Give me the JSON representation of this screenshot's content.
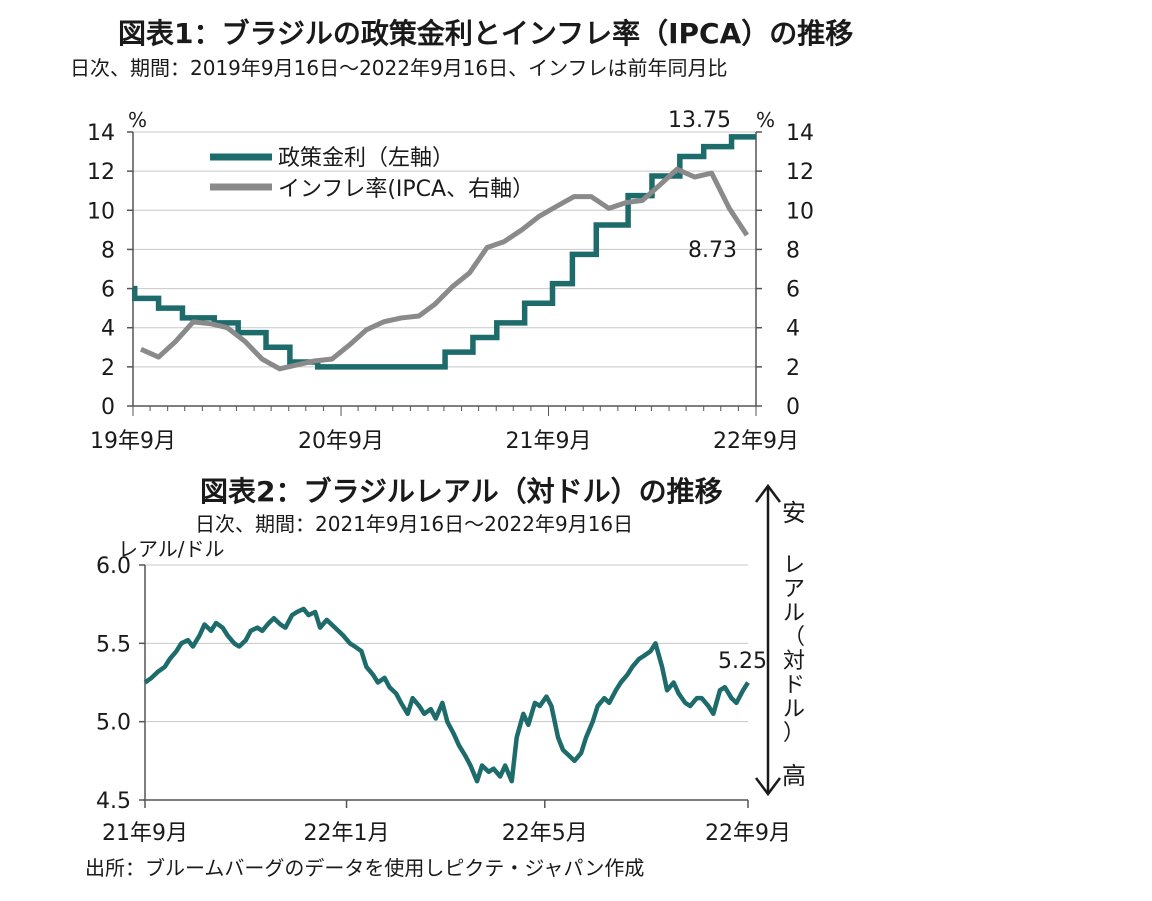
{
  "chart1": {
    "title": "図表1：ブラジルの政策金利とインフレ率（IPCA）の推移",
    "subtitle": "日次、期間：2019年9月16日～2022年9月16日、インフレは前年同月比",
    "left_unit": "%",
    "right_unit": "%",
    "legend_policy": "政策金利（左軸）",
    "legend_ipca": "インフレ率(IPCA、右軸）",
    "end_label_policy": "13.75",
    "end_label_ipca": "8.73",
    "y_ticks": [
      "0",
      "2",
      "4",
      "6",
      "8",
      "10",
      "12",
      "14"
    ],
    "x_ticks": [
      "19年9月",
      "20年9月",
      "21年9月",
      "22年9月"
    ]
  },
  "chart2": {
    "title": "図表2：ブラジルレアル（対ドル）の推移",
    "subtitle": "日次、期間：2021年9月16日～2022年9月16日",
    "unit": "レアル/ドル",
    "end_label": "5.25",
    "y_ticks": [
      "6.0",
      "5.5",
      "5.0",
      "4.5"
    ],
    "x_ticks": [
      "21年9月",
      "22年1月",
      "22年5月",
      "22年9月"
    ],
    "side_top": "安",
    "side_mid": [
      "レ",
      "ア",
      "ル",
      "（",
      "対",
      "ド",
      "ル",
      "）"
    ],
    "side_bottom": "高"
  },
  "source": "出所：ブルームバーグのデータを使用しピクテ・ジャパン作成",
  "colors": {
    "policy": "#1d6b6b",
    "ipca": "#8a8a8a",
    "brl": "#1d6b6b",
    "grid": "#c8c8c8",
    "axis": "#555555"
  },
  "chart_data": [
    {
      "type": "line",
      "title": "図表1：ブラジルの政策金利とインフレ率（IPCA）の推移",
      "x_range": [
        "2019-09-16",
        "2022-09-16"
      ],
      "ylim": [
        0,
        14
      ],
      "series": [
        {
          "name": "政策金利（左軸）",
          "step": true,
          "points": [
            [
              "2019-09-16",
              6.0
            ],
            [
              "2019-09-19",
              5.5
            ],
            [
              "2019-10-31",
              5.0
            ],
            [
              "2019-12-12",
              4.5
            ],
            [
              "2020-02-06",
              4.25
            ],
            [
              "2020-03-19",
              3.75
            ],
            [
              "2020-05-07",
              3.0
            ],
            [
              "2020-06-18",
              2.25
            ],
            [
              "2020-08-06",
              2.0
            ],
            [
              "2021-03-18",
              2.75
            ],
            [
              "2021-05-06",
              3.5
            ],
            [
              "2021-06-17",
              4.25
            ],
            [
              "2021-08-05",
              5.25
            ],
            [
              "2021-09-23",
              6.25
            ],
            [
              "2021-10-28",
              7.75
            ],
            [
              "2021-12-09",
              9.25
            ],
            [
              "2022-02-03",
              10.75
            ],
            [
              "2022-03-17",
              11.75
            ],
            [
              "2022-05-05",
              12.75
            ],
            [
              "2022-06-16",
              13.25
            ],
            [
              "2022-08-04",
              13.75
            ],
            [
              "2022-09-16",
              13.75
            ]
          ]
        },
        {
          "name": "インフレ率(IPCA、右軸）",
          "points": [
            [
              "2019-09-30",
              2.9
            ],
            [
              "2019-10-31",
              2.5
            ],
            [
              "2019-11-30",
              3.3
            ],
            [
              "2019-12-31",
              4.3
            ],
            [
              "2020-01-31",
              4.2
            ],
            [
              "2020-02-29",
              4.0
            ],
            [
              "2020-03-31",
              3.3
            ],
            [
              "2020-04-30",
              2.4
            ],
            [
              "2020-05-31",
              1.9
            ],
            [
              "2020-06-30",
              2.1
            ],
            [
              "2020-07-31",
              2.3
            ],
            [
              "2020-08-31",
              2.4
            ],
            [
              "2020-09-30",
              3.1
            ],
            [
              "2020-10-31",
              3.9
            ],
            [
              "2020-11-30",
              4.3
            ],
            [
              "2020-12-31",
              4.5
            ],
            [
              "2021-01-31",
              4.6
            ],
            [
              "2021-02-28",
              5.2
            ],
            [
              "2021-03-31",
              6.1
            ],
            [
              "2021-04-30",
              6.8
            ],
            [
              "2021-05-31",
              8.1
            ],
            [
              "2021-06-30",
              8.4
            ],
            [
              "2021-07-31",
              9.0
            ],
            [
              "2021-08-31",
              9.7
            ],
            [
              "2021-09-30",
              10.2
            ],
            [
              "2021-10-31",
              10.7
            ],
            [
              "2021-11-30",
              10.7
            ],
            [
              "2021-12-31",
              10.1
            ],
            [
              "2022-01-31",
              10.4
            ],
            [
              "2022-02-28",
              10.5
            ],
            [
              "2022-03-31",
              11.3
            ],
            [
              "2022-04-30",
              12.1
            ],
            [
              "2022-05-31",
              11.7
            ],
            [
              "2022-06-30",
              11.9
            ],
            [
              "2022-07-31",
              10.1
            ],
            [
              "2022-08-31",
              8.73
            ]
          ]
        }
      ],
      "annotations": [
        {
          "text": "13.75",
          "series": "政策金利（左軸）",
          "x": "2022-09-16"
        },
        {
          "text": "8.73",
          "series": "インフレ率(IPCA、右軸）",
          "x": "2022-08-31"
        }
      ]
    },
    {
      "type": "line",
      "title": "図表2：ブラジルレアル（対ドル）の推移",
      "x_range": [
        "2021-09-16",
        "2022-09-16"
      ],
      "ylim": [
        4.5,
        6.0
      ],
      "ylabel": "レアル/ドル",
      "series": [
        {
          "points": [
            [
              "2021-09-16",
              5.25
            ],
            [
              "2021-09-20",
              5.28
            ],
            [
              "2021-09-24",
              5.32
            ],
            [
              "2021-09-28",
              5.35
            ],
            [
              "2021-10-01",
              5.4
            ],
            [
              "2021-10-05",
              5.45
            ],
            [
              "2021-10-08",
              5.5
            ],
            [
              "2021-10-12",
              5.52
            ],
            [
              "2021-10-15",
              5.48
            ],
            [
              "2021-10-19",
              5.55
            ],
            [
              "2021-10-22",
              5.62
            ],
            [
              "2021-10-26",
              5.58
            ],
            [
              "2021-10-29",
              5.63
            ],
            [
              "2021-11-02",
              5.6
            ],
            [
              "2021-11-05",
              5.55
            ],
            [
              "2021-11-09",
              5.5
            ],
            [
              "2021-11-12",
              5.48
            ],
            [
              "2021-11-16",
              5.52
            ],
            [
              "2021-11-19",
              5.58
            ],
            [
              "2021-11-23",
              5.6
            ],
            [
              "2021-11-26",
              5.58
            ],
            [
              "2021-11-30",
              5.63
            ],
            [
              "2021-12-03",
              5.66
            ],
            [
              "2021-12-07",
              5.62
            ],
            [
              "2021-12-10",
              5.6
            ],
            [
              "2021-12-14",
              5.68
            ],
            [
              "2021-12-17",
              5.7
            ],
            [
              "2021-12-21",
              5.72
            ],
            [
              "2021-12-24",
              5.68
            ],
            [
              "2021-12-28",
              5.7
            ],
            [
              "2021-12-31",
              5.6
            ],
            [
              "2022-01-04",
              5.65
            ],
            [
              "2022-01-07",
              5.62
            ],
            [
              "2022-01-11",
              5.58
            ],
            [
              "2022-01-14",
              5.55
            ],
            [
              "2022-01-18",
              5.5
            ],
            [
              "2022-01-21",
              5.48
            ],
            [
              "2022-01-25",
              5.45
            ],
            [
              "2022-01-28",
              5.35
            ],
            [
              "2022-02-01",
              5.3
            ],
            [
              "2022-02-04",
              5.25
            ],
            [
              "2022-02-08",
              5.28
            ],
            [
              "2022-02-11",
              5.22
            ],
            [
              "2022-02-15",
              5.18
            ],
            [
              "2022-02-18",
              5.12
            ],
            [
              "2022-02-22",
              5.05
            ],
            [
              "2022-02-25",
              5.15
            ],
            [
              "2022-03-01",
              5.1
            ],
            [
              "2022-03-04",
              5.05
            ],
            [
              "2022-03-08",
              5.08
            ],
            [
              "2022-03-11",
              5.02
            ],
            [
              "2022-03-15",
              5.12
            ],
            [
              "2022-03-18",
              5.0
            ],
            [
              "2022-03-22",
              4.92
            ],
            [
              "2022-03-25",
              4.85
            ],
            [
              "2022-03-29",
              4.78
            ],
            [
              "2022-04-01",
              4.72
            ],
            [
              "2022-04-05",
              4.62
            ],
            [
              "2022-04-08",
              4.72
            ],
            [
              "2022-04-12",
              4.68
            ],
            [
              "2022-04-15",
              4.7
            ],
            [
              "2022-04-19",
              4.65
            ],
            [
              "2022-04-22",
              4.72
            ],
            [
              "2022-04-26",
              4.62
            ],
            [
              "2022-04-29",
              4.9
            ],
            [
              "2022-05-03",
              5.05
            ],
            [
              "2022-05-06",
              4.98
            ],
            [
              "2022-05-10",
              5.12
            ],
            [
              "2022-05-13",
              5.1
            ],
            [
              "2022-05-17",
              5.16
            ],
            [
              "2022-05-20",
              5.1
            ],
            [
              "2022-05-24",
              4.9
            ],
            [
              "2022-05-27",
              4.82
            ],
            [
              "2022-05-31",
              4.78
            ],
            [
              "2022-06-03",
              4.75
            ],
            [
              "2022-06-07",
              4.8
            ],
            [
              "2022-06-10",
              4.9
            ],
            [
              "2022-06-14",
              5.0
            ],
            [
              "2022-06-17",
              5.1
            ],
            [
              "2022-06-21",
              5.15
            ],
            [
              "2022-06-24",
              5.12
            ],
            [
              "2022-06-28",
              5.2
            ],
            [
              "2022-07-01",
              5.25
            ],
            [
              "2022-07-05",
              5.3
            ],
            [
              "2022-07-08",
              5.35
            ],
            [
              "2022-07-12",
              5.4
            ],
            [
              "2022-07-15",
              5.42
            ],
            [
              "2022-07-19",
              5.45
            ],
            [
              "2022-07-22",
              5.5
            ],
            [
              "2022-07-26",
              5.35
            ],
            [
              "2022-07-29",
              5.2
            ],
            [
              "2022-08-02",
              5.25
            ],
            [
              "2022-08-05",
              5.18
            ],
            [
              "2022-08-09",
              5.12
            ],
            [
              "2022-08-12",
              5.1
            ],
            [
              "2022-08-16",
              5.15
            ],
            [
              "2022-08-19",
              5.15
            ],
            [
              "2022-08-23",
              5.1
            ],
            [
              "2022-08-26",
              5.05
            ],
            [
              "2022-08-30",
              5.2
            ],
            [
              "2022-09-02",
              5.22
            ],
            [
              "2022-09-06",
              5.15
            ],
            [
              "2022-09-09",
              5.12
            ],
            [
              "2022-09-13",
              5.2
            ],
            [
              "2022-09-16",
              5.25
            ]
          ]
        }
      ],
      "annotations": [
        {
          "text": "5.25",
          "x": "2022-09-16"
        }
      ],
      "side_note": {
        "top": "安",
        "middle": "レアル（対ドル）",
        "bottom": "高"
      }
    }
  ]
}
